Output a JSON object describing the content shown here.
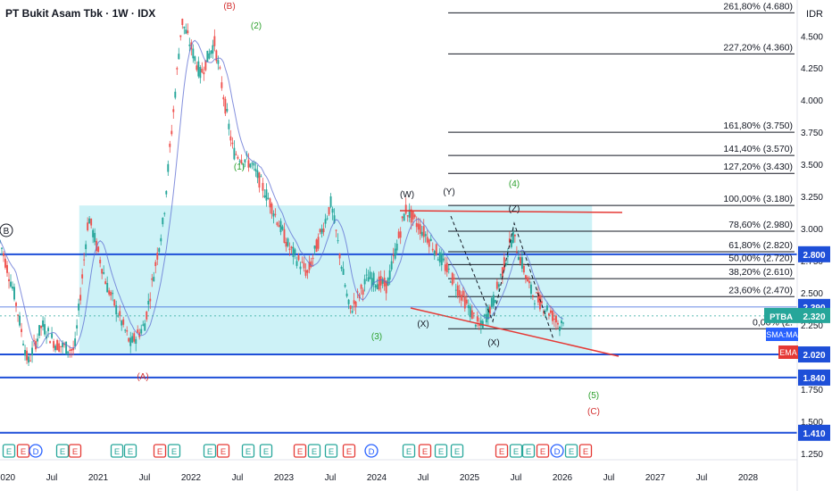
{
  "header": {
    "title": "PT Bukit Asam Tbk · 1W · IDX",
    "currency": "IDR"
  },
  "colors": {
    "up": "#26a69a",
    "down": "#ef5350",
    "hline": "#1e4fd8",
    "box": "#b2ebf2",
    "sma": "#5b6bd1",
    "ema_badge": "#e53935",
    "sma_badge": "#2962ff",
    "price_badge": "#26a69a",
    "trend": "#e53935",
    "wave_green": "#2ca02c",
    "wave_red": "#d32f2f",
    "fib": "#131722"
  },
  "chart_data": {
    "type": "candlestick",
    "x_ticks": [
      "2020",
      "Jul",
      "2021",
      "Jul",
      "2022",
      "Jul",
      "2023",
      "Jul",
      "2024",
      "Jul",
      "2025",
      "Jul",
      "2026",
      "Jul",
      "2027",
      "Jul",
      "2028"
    ],
    "y_ticks": [
      "4.500",
      "4.250",
      "4.000",
      "3.750",
      "3.500",
      "3.250",
      "3.000",
      "2.750",
      "2.500",
      "2.250",
      "2.000",
      "1.750",
      "1.500",
      "1.250"
    ],
    "ylim": [
      1.2,
      4.78
    ],
    "xlim": [
      2020.0,
      2028.55
    ],
    "price_levels": [
      {
        "label": "2.800",
        "value": 2.8
      },
      {
        "label": "2.390",
        "value": 2.39
      },
      {
        "label": "2.020",
        "value": 2.02
      },
      {
        "label": "1.840",
        "value": 1.84
      },
      {
        "label": "1.410",
        "value": 1.41
      }
    ],
    "fib_levels": [
      {
        "label": "261,80% (4.680)",
        "value": 4.68
      },
      {
        "label": "227,20% (4.360)",
        "value": 4.36
      },
      {
        "label": "161,80% (3.750)",
        "value": 3.75
      },
      {
        "label": "141,40% (3.570)",
        "value": 3.57
      },
      {
        "label": "127,20% (3.430)",
        "value": 3.43
      },
      {
        "label": "100,00% (3.180)",
        "value": 3.18
      },
      {
        "label": "78,60% (2.980)",
        "value": 2.98
      },
      {
        "label": "61,80% (2.820)",
        "value": 2.82
      },
      {
        "label": "50,00% (2.720)",
        "value": 2.72
      },
      {
        "label": "38,20% (2.610)",
        "value": 2.61
      },
      {
        "label": "23,60% (2.470)",
        "value": 2.47
      },
      {
        "label": "0,00% (2.",
        "value": 2.22
      }
    ],
    "current": {
      "symbol": "PTBA",
      "price": "2.320",
      "value": 2.32
    },
    "indicator_badges": [
      "SMA:MA",
      "EMA"
    ],
    "zone": {
      "x0": 2020.85,
      "x1": 2026.35,
      "y0": 2.02,
      "y1": 3.18
    },
    "wave_labels": [
      {
        "text": "(B)",
        "x": 2021.85,
        "y": 4.72,
        "color": "red"
      },
      {
        "text": "(2)",
        "x": 2022.22,
        "y": 4.56,
        "color": "green"
      },
      {
        "text": "(1)",
        "x": 2022.0,
        "y": 3.48,
        "color": "green"
      },
      {
        "text": "B",
        "x": 2020.03,
        "y": 3.0,
        "color": "dark",
        "circled": true
      },
      {
        "text": "(A)",
        "x": 2021.42,
        "y": 1.98,
        "color": "red"
      },
      {
        "text": "(W)",
        "x": 2023.32,
        "y": 3.28,
        "color": "dark"
      },
      {
        "text": "(Y)",
        "x": 2023.72,
        "y": 3.3,
        "color": "dark"
      },
      {
        "text": "(4)",
        "x": 2024.22,
        "y": 3.36,
        "color": "green"
      },
      {
        "text": "(Z)",
        "x": 2024.22,
        "y": 3.2,
        "color": "dark"
      },
      {
        "text": "(3)",
        "x": 2023.07,
        "y": 2.15,
        "color": "green"
      },
      {
        "text": "(X)",
        "x": 2023.42,
        "y": 2.24,
        "color": "dark"
      },
      {
        "text": "(X)",
        "x": 2023.98,
        "y": 2.11,
        "color": "dark"
      },
      {
        "text": "(5)",
        "x": 2024.92,
        "y": 1.68,
        "color": "green"
      },
      {
        "text": "(C)",
        "x": 2024.92,
        "y": 1.56,
        "color": "red"
      }
    ],
    "event_markers": [
      "E",
      "E",
      "D",
      "E",
      "E",
      "E",
      "E",
      "E",
      "E",
      "E",
      "E",
      "E",
      "E",
      "E",
      "E",
      "E",
      "E",
      "D",
      "E",
      "E",
      "E",
      "E",
      "E",
      "E",
      "E",
      "E",
      "D",
      "E",
      "E",
      "E",
      "E"
    ]
  }
}
